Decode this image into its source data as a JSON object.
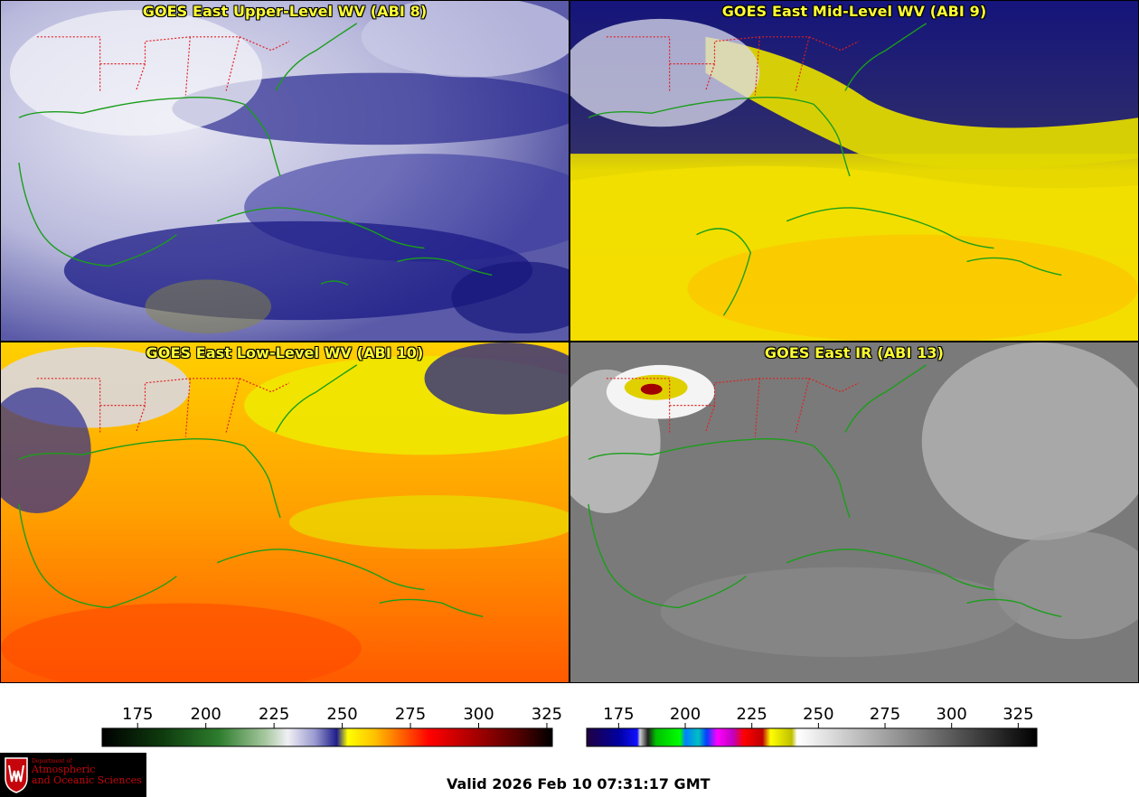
{
  "panels": [
    {
      "id": "p1",
      "title": "GOES East Upper-Level WV (ABI 8)"
    },
    {
      "id": "p2",
      "title": "GOES East Mid-Level WV (ABI 9)"
    },
    {
      "id": "p3",
      "title": "GOES East Low-Level WV (ABI 10)"
    },
    {
      "id": "p4",
      "title": "GOES East IR (ABI 13)"
    }
  ],
  "colorbars": {
    "wv": {
      "ticks": [
        "175",
        "200",
        "225",
        "250",
        "275",
        "300",
        "325"
      ],
      "range": [
        162,
        327
      ],
      "stops": [
        {
          "v": 162,
          "c": "#000000"
        },
        {
          "v": 185,
          "c": "#0f3d0f"
        },
        {
          "v": 205,
          "c": "#2e7d2e"
        },
        {
          "v": 222,
          "c": "#a8c8a0"
        },
        {
          "v": 230,
          "c": "#f0f0f4"
        },
        {
          "v": 240,
          "c": "#9a9ad0"
        },
        {
          "v": 248,
          "c": "#1e1e8c"
        },
        {
          "v": 252,
          "c": "#ffff00"
        },
        {
          "v": 262,
          "c": "#ffc000"
        },
        {
          "v": 272,
          "c": "#ff6000"
        },
        {
          "v": 282,
          "c": "#ff0000"
        },
        {
          "v": 300,
          "c": "#a00000"
        },
        {
          "v": 315,
          "c": "#500000"
        },
        {
          "v": 327,
          "c": "#000000"
        }
      ]
    },
    "ir": {
      "ticks": [
        "175",
        "200",
        "225",
        "250",
        "275",
        "300",
        "325"
      ],
      "range": [
        163,
        332
      ],
      "stops": [
        {
          "v": 163,
          "c": "#200040"
        },
        {
          "v": 175,
          "c": "#0000a0"
        },
        {
          "v": 182,
          "c": "#1010ff"
        },
        {
          "v": 183,
          "c": "#d0d0d0"
        },
        {
          "v": 186,
          "c": "#202020"
        },
        {
          "v": 189,
          "c": "#00c000"
        },
        {
          "v": 198,
          "c": "#00ff00"
        },
        {
          "v": 200,
          "c": "#0080ff"
        },
        {
          "v": 205,
          "c": "#00c0c0"
        },
        {
          "v": 208,
          "c": "#0040ff"
        },
        {
          "v": 212,
          "c": "#ff00ff"
        },
        {
          "v": 218,
          "c": "#c000c0"
        },
        {
          "v": 222,
          "c": "#ff0000"
        },
        {
          "v": 229,
          "c": "#c00000"
        },
        {
          "v": 232,
          "c": "#ffff00"
        },
        {
          "v": 240,
          "c": "#c0c000"
        },
        {
          "v": 242,
          "c": "#ffffff"
        },
        {
          "v": 332,
          "c": "#000000"
        }
      ]
    }
  },
  "logo": {
    "dept": "Department of",
    "line1": "Atmospheric",
    "line2": "and Oceanic Sciences",
    "colors": {
      "background": "#000000",
      "text": "#c5050c"
    }
  },
  "valid_time": "Valid 2026 Feb 10 07:31:17 GMT",
  "colors": {
    "title": "#ffff33",
    "coastline": "#1a9e1a",
    "state_borders": "#e02020"
  }
}
